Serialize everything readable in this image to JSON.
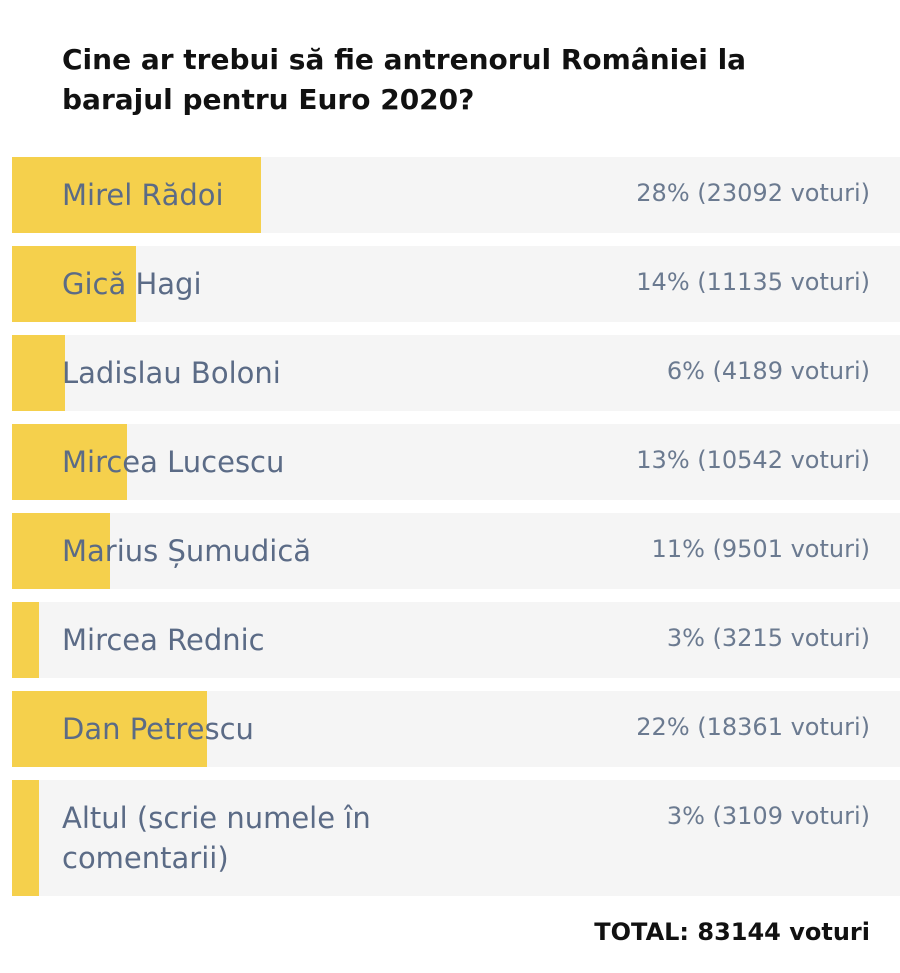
{
  "chart_data": {
    "type": "bar",
    "title": "Cine ar trebui să fie antrenorul României la barajul pentru Euro 2020?",
    "categories": [
      "Mirel Rădoi",
      "Gică Hagi",
      "Ladislau Boloni",
      "Mircea Lucescu",
      "Marius Șumudică",
      "Mircea Rednic",
      "Dan Petrescu",
      "Altul (scrie numele în comentarii)"
    ],
    "values": [
      28,
      14,
      6,
      13,
      11,
      3,
      22,
      3
    ],
    "value_labels": [
      "28% (23092 voturi)",
      "14% (11135 voturi)",
      "6% (4189 voturi)",
      "13% (10542 voturi)",
      "11% (9501 voturi)",
      "3% (3215 voturi)",
      "22% (18361 voturi)",
      "3% (3109 voturi)"
    ],
    "xlim": [
      0,
      100
    ],
    "color": "#f5d04c",
    "annotation": "TOTAL: 83144 voturi"
  }
}
